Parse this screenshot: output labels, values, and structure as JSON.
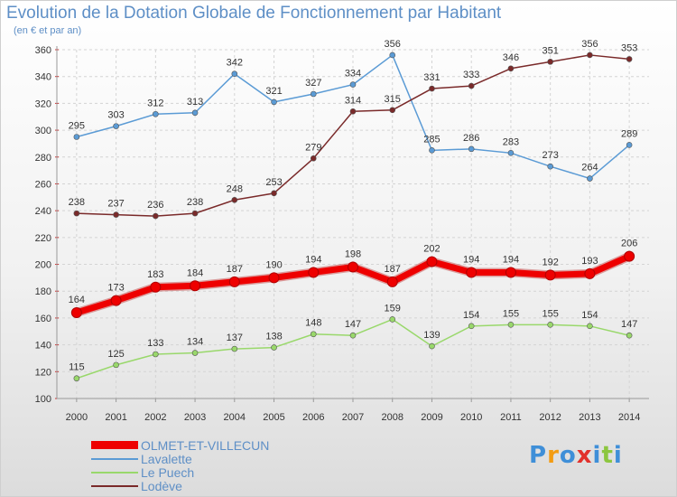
{
  "chart_data": {
    "type": "line",
    "title": "Evolution de la Dotation Globale de Fonctionnement par Habitant",
    "subtitle": "(en € et par an)",
    "xlabel": "",
    "ylabel": "",
    "x": [
      2000,
      2001,
      2002,
      2003,
      2004,
      2005,
      2006,
      2007,
      2008,
      2009,
      2010,
      2011,
      2012,
      2013,
      2014
    ],
    "ylim": [
      100,
      360
    ],
    "yticks": [
      100,
      120,
      140,
      160,
      180,
      200,
      220,
      240,
      260,
      280,
      300,
      320,
      340,
      360
    ],
    "grid": true,
    "legend_position": "bottom-left",
    "series": [
      {
        "name": "OLMET-ET-VILLECUN",
        "color": "#ee0000",
        "values": [
          164,
          173,
          183,
          184,
          187,
          190,
          194,
          198,
          187,
          202,
          194,
          194,
          192,
          193,
          206
        ]
      },
      {
        "name": "Lavalette",
        "color": "#5b9bd5",
        "values": [
          295,
          303,
          312,
          313,
          342,
          321,
          327,
          334,
          356,
          285,
          286,
          283,
          273,
          264,
          289
        ]
      },
      {
        "name": "Le Puech",
        "color": "#99d86b",
        "values": [
          115,
          125,
          133,
          134,
          137,
          138,
          148,
          147,
          159,
          139,
          154,
          155,
          155,
          154,
          147
        ]
      },
      {
        "name": "Lodève",
        "color": "#7a2a2a",
        "values": [
          238,
          237,
          236,
          238,
          248,
          253,
          279,
          314,
          315,
          331,
          333,
          346,
          351,
          356,
          353
        ]
      }
    ]
  },
  "logo": {
    "letters": [
      "P",
      "r",
      "o",
      "x",
      "i",
      "t",
      "i"
    ],
    "colors": [
      "#3f8fd8",
      "#f39c12",
      "#3f8fd8",
      "#e2312b",
      "#3f8fd8",
      "#8cc63f",
      "#3f8fd8"
    ]
  }
}
